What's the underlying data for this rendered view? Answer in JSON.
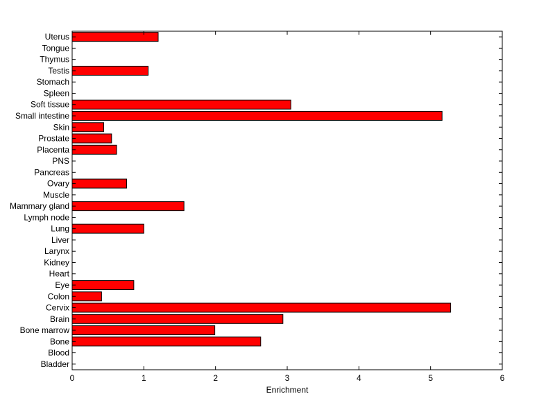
{
  "chart_data": {
    "type": "bar",
    "orientation": "horizontal",
    "title": "",
    "xlabel": "Enrichment",
    "ylabel": "",
    "xlim": [
      0,
      6
    ],
    "xticks": [
      0,
      1,
      2,
      3,
      4,
      5,
      6
    ],
    "grid": false,
    "legend": "none",
    "bar_color": "#ff0000",
    "bar_edge_color": "#000000",
    "categories": [
      "Bladder",
      "Blood",
      "Bone",
      "Bone marrow",
      "Brain",
      "Cervix",
      "Colon",
      "Eye",
      "Heart",
      "Kidney",
      "Larynx",
      "Liver",
      "Lung",
      "Lymph node",
      "Mammary gland",
      "Muscle",
      "Ovary",
      "Pancreas",
      "PNS",
      "Placenta",
      "Prostate",
      "Skin",
      "Small intestine",
      "Soft tissue",
      "Spleen",
      "Stomach",
      "Testis",
      "Thymus",
      "Tongue",
      "Uterus"
    ],
    "values": [
      0,
      0,
      2.63,
      1.99,
      2.94,
      5.28,
      0.41,
      0.86,
      0,
      0,
      0,
      0,
      1.0,
      0,
      1.56,
      0,
      0.76,
      0,
      0,
      0.62,
      0.55,
      0.44,
      5.16,
      3.05,
      0,
      0,
      1.06,
      0,
      0,
      1.2
    ]
  }
}
